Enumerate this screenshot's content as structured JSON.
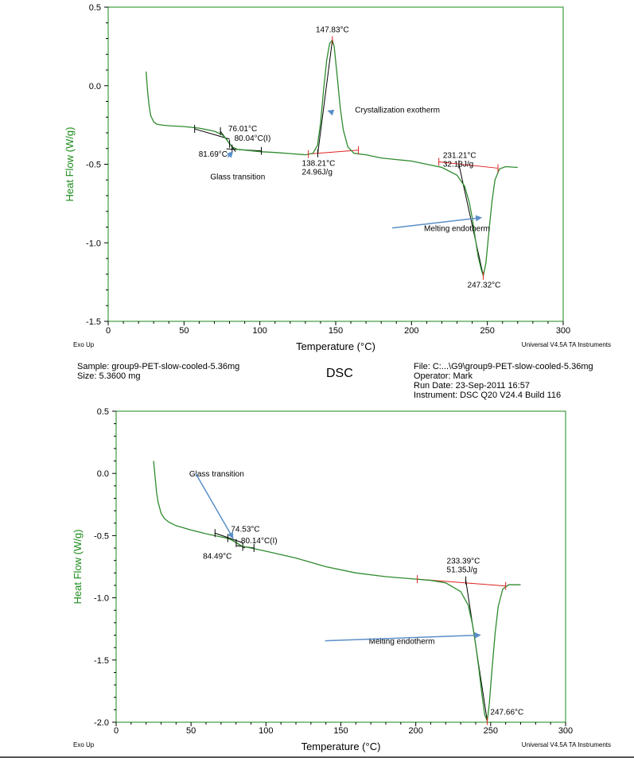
{
  "header": {
    "sample_label": "Sample:",
    "sample_value": "group9-PET-slow-cooled-5.36mg",
    "size_label": "Size:",
    "size_value": "5.3600 mg",
    "method": "DSC",
    "file_label": "File:",
    "file_value": "C:...\\G9\\group9-PET-slow-cooled-5.36mg",
    "operator_label": "Operator:",
    "operator_value": "Mark",
    "run_date_label": "Run Date:",
    "run_date_value": "23-Sep-2011 16:57",
    "instrument_label": "Instrument:",
    "instrument_value": "DSC Q20 V24.4 Build 116"
  },
  "colors": {
    "curve": "#2e8b2e",
    "construction": "#000000",
    "baseline": "#e02020",
    "arrow": "#5b8fc8",
    "axis_label": "#1a8a1a"
  },
  "chart_data": [
    {
      "type": "line",
      "xlabel": "Temperature (°C)",
      "ylabel": "Heat Flow (W/g)",
      "xlim": [
        0,
        300
      ],
      "ylim": [
        -1.5,
        0.5
      ],
      "xticks": [
        0,
        50,
        100,
        150,
        200,
        250,
        300
      ],
      "yticks": [
        0.5,
        0.0,
        -0.5,
        -1.0,
        -1.5
      ],
      "ytick_labels": [
        "0.5",
        "0.0",
        "-0.5",
        "-1.0",
        "-1.5"
      ],
      "corner_left": "Exo Up",
      "corner_right": "Universal V4.5A TA Instruments",
      "grid": false,
      "series": [
        {
          "x": [
            25,
            26,
            27,
            28,
            30,
            32,
            35,
            40,
            50,
            60,
            70,
            75,
            78,
            80,
            82,
            85,
            90,
            100,
            110,
            120,
            130,
            135,
            138,
            140,
            142,
            144,
            146,
            147.8,
            149,
            151,
            153,
            155,
            158,
            162,
            170,
            180,
            190,
            200,
            210,
            220,
            230,
            235,
            238,
            240,
            242,
            244,
            246,
            247.3,
            249,
            251,
            253,
            255,
            258,
            262,
            270
          ],
          "y": [
            0.09,
            -0.04,
            -0.13,
            -0.19,
            -0.23,
            -0.245,
            -0.25,
            -0.255,
            -0.26,
            -0.27,
            -0.29,
            -0.31,
            -0.34,
            -0.37,
            -0.39,
            -0.405,
            -0.41,
            -0.42,
            -0.425,
            -0.432,
            -0.44,
            -0.43,
            -0.38,
            -0.24,
            -0.03,
            0.16,
            0.27,
            0.29,
            0.25,
            0.06,
            -0.14,
            -0.28,
            -0.39,
            -0.43,
            -0.44,
            -0.46,
            -0.47,
            -0.48,
            -0.5,
            -0.52,
            -0.57,
            -0.64,
            -0.74,
            -0.84,
            -0.97,
            -1.09,
            -1.17,
            -1.21,
            -1.13,
            -0.93,
            -0.74,
            -0.6,
            -0.53,
            -0.515,
            -0.52
          ]
        }
      ],
      "annotations": [
        {
          "text": "147.83°C",
          "x": 147.83,
          "y": 0.29
        },
        {
          "text": "Crystallization exotherm",
          "x": 147,
          "y": -0.15
        },
        {
          "text": "76.01°C",
          "x": 76.01,
          "y": -0.31
        },
        {
          "text": "80.04°C(I)",
          "x": 80.04,
          "y": -0.37
        },
        {
          "text": "81.69°C",
          "x": 81.69,
          "y": -0.4
        },
        {
          "text": "Glass transition",
          "x": 82,
          "y": -0.42
        },
        {
          "text": "138.21°C",
          "x": 138.21,
          "y": -0.43
        },
        {
          "text": "24.96J/g",
          "x": 138.21,
          "y": -0.43
        },
        {
          "text": "231.21°C",
          "x": 231.21,
          "y": -0.5
        },
        {
          "text": "32.13J/g",
          "x": 231.21,
          "y": -0.5
        },
        {
          "text": "Melting endotherm",
          "x": 246,
          "y": -0.85
        },
        {
          "text": "247.32°C",
          "x": 247.32,
          "y": -1.21
        }
      ]
    },
    {
      "type": "line",
      "xlabel": "Temperature (°C)",
      "ylabel": "Heat Flow (W/g)",
      "xlim": [
        0,
        300
      ],
      "ylim": [
        -2.0,
        0.5
      ],
      "xticks": [
        0,
        50,
        100,
        150,
        200,
        250,
        300
      ],
      "yticks": [
        0.5,
        0.0,
        -0.5,
        -1.0,
        -1.5,
        -2.0
      ],
      "ytick_labels": [
        "0.5",
        "0.0",
        "-0.5",
        "-1.0",
        "-1.5",
        "-2.0"
      ],
      "corner_left": "Exo Up",
      "corner_right": "Universal V4.5A TA Instruments",
      "grid": false,
      "series": [
        {
          "x": [
            25,
            26,
            27,
            28,
            30,
            32,
            35,
            40,
            50,
            60,
            70,
            75,
            78,
            80,
            82,
            84,
            86,
            90,
            100,
            120,
            140,
            160,
            180,
            200,
            210,
            220,
            230,
            235,
            238,
            240,
            242,
            244,
            246,
            247.7,
            249,
            251,
            253,
            255,
            258,
            262,
            270
          ],
          "y": [
            0.1,
            -0.03,
            -0.15,
            -0.23,
            -0.32,
            -0.36,
            -0.39,
            -0.42,
            -0.455,
            -0.485,
            -0.51,
            -0.525,
            -0.54,
            -0.555,
            -0.57,
            -0.585,
            -0.59,
            -0.6,
            -0.625,
            -0.68,
            -0.75,
            -0.8,
            -0.83,
            -0.85,
            -0.86,
            -0.88,
            -0.95,
            -1.06,
            -1.22,
            -1.38,
            -1.56,
            -1.76,
            -1.94,
            -1.99,
            -1.86,
            -1.56,
            -1.28,
            -1.07,
            -0.93,
            -0.895,
            -0.895
          ]
        }
      ],
      "annotations": [
        {
          "text": "Glass transition",
          "x": 78,
          "y": -0.3
        },
        {
          "text": "74.53°C",
          "x": 74.53,
          "y": -0.52
        },
        {
          "text": "80.14°C(I)",
          "x": 80.14,
          "y": -0.56
        },
        {
          "text": "84.49°C",
          "x": 84.49,
          "y": -0.59
        },
        {
          "text": "233.39°C",
          "x": 233.39,
          "y": -0.86
        },
        {
          "text": "51.35J/g",
          "x": 233.39,
          "y": -0.86
        },
        {
          "text": "Melting endotherm",
          "x": 243,
          "y": -1.32
        },
        {
          "text": "247.66°C",
          "x": 247.66,
          "y": -1.99
        }
      ]
    }
  ]
}
